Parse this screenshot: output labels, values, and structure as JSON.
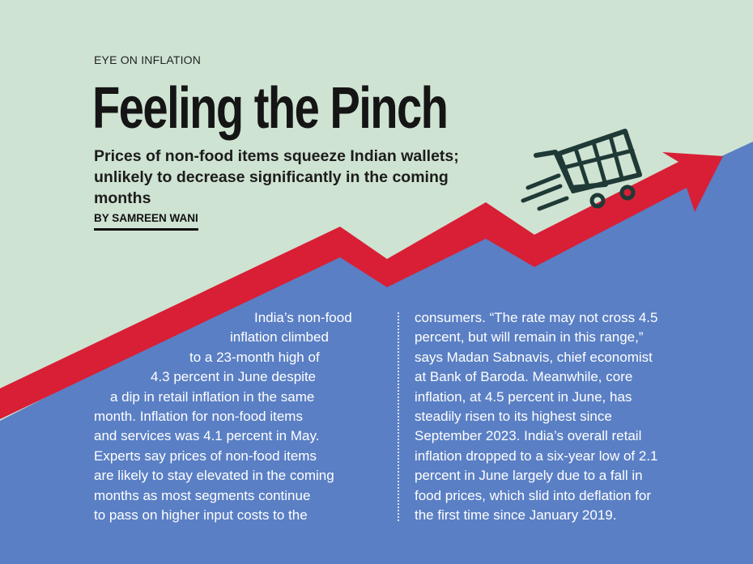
{
  "article": {
    "kicker": "EYE ON INFLATION",
    "headline": "Feeling the Pinch",
    "deck": "Prices of non-food items squeeze Indian wallets; unlikely to decrease significantly in the coming months",
    "byline": "BY SAMREEN WANI",
    "column_1_lines": [
      "India’s non-food",
      "inflation climbed",
      "to a 23-month high of",
      "4.3 percent in June despite",
      "a dip in retail inflation in the same",
      "month. Inflation for non-food items",
      "and services was 4.1 percent in May.",
      "Experts say prices of non-food items",
      "are likely to stay elevated in the coming",
      "months as most segments continue",
      "to pass on higher input costs to the"
    ],
    "column_2_lines": [
      "consumers. “The rate may not cross 4.5",
      "percent, but will remain in this range,”",
      "says Madan Sabnavis, chief economist",
      "at Bank of Baroda. Meanwhile, core",
      "inflation, at 4.5 percent in June, has",
      "steadily risen to its highest since",
      "September 2023. India’s overall retail",
      "inflation dropped to a six-year low of 2.1",
      "percent in June largely due to a fall in",
      "food prices, which slid into deflation for",
      "the first time since January 2019."
    ]
  },
  "illustration": {
    "icon": "shopping-cart-icon",
    "arrow": "rising-trend-arrow",
    "colors": {
      "background_mint": "#cfe3d2",
      "panel_blue": "#5a7fc4",
      "arrow_red": "#d81f36",
      "cart_dark": "#1f3a36"
    }
  }
}
